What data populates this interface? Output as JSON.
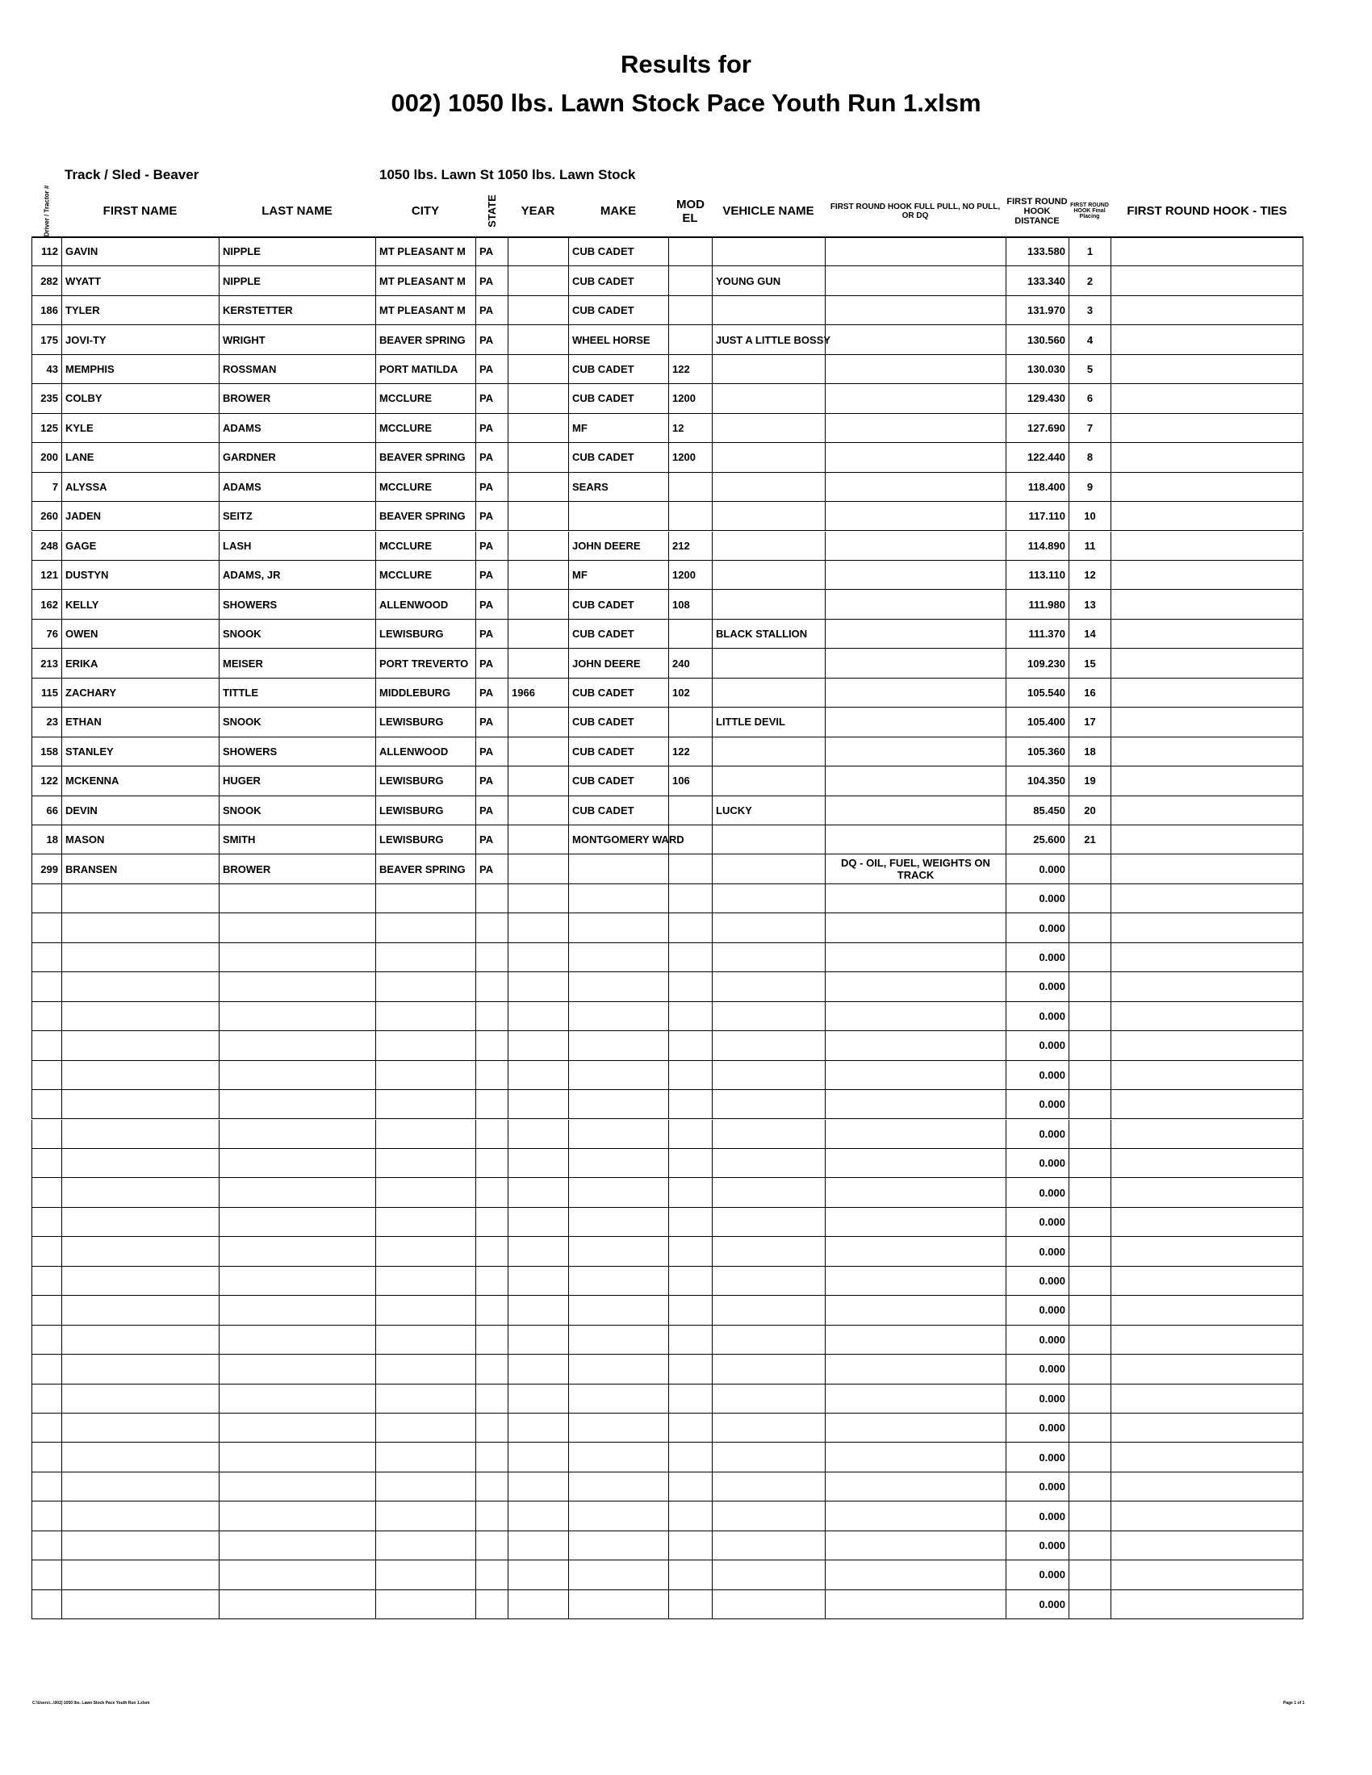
{
  "header": {
    "title": "Results for",
    "subtitle": "002) 1050 lbs. Lawn Stock Pace Youth  Run 1.xlsm",
    "track": "Track / Sled - Beaver",
    "class": "1050 lbs. Lawn St 1050 lbs. Lawn Stock"
  },
  "table": {
    "columns": {
      "num": "Driver / Tractor #",
      "first": "FIRST NAME",
      "last": "LAST NAME",
      "city": "CITY",
      "state": "STATE",
      "year": "YEAR",
      "make": "MAKE",
      "model": "MOD EL",
      "vehicle": "VEHICLE NAME",
      "hook": "FIRST ROUND HOOK FULL PULL, NO PULL, OR DQ",
      "distance": "FIRST ROUND HOOK DISTANCE",
      "place": "FIRST ROUND HOOK Final Placing",
      "ties": "FIRST ROUND HOOK - TIES"
    },
    "rows": [
      {
        "num": "112",
        "first": "GAVIN",
        "last": "NIPPLE",
        "city": "MT PLEASANT M",
        "state": "PA",
        "make": "CUB CADET",
        "distance": "133.580",
        "place": "1"
      },
      {
        "num": "282",
        "first": "WYATT",
        "last": "NIPPLE",
        "city": "MT PLEASANT M",
        "state": "PA",
        "make": "CUB CADET",
        "vehicle": "YOUNG GUN",
        "distance": "133.340",
        "place": "2"
      },
      {
        "num": "186",
        "first": "TYLER",
        "last": "KERSTETTER",
        "city": "MT PLEASANT M",
        "state": "PA",
        "make": "CUB CADET",
        "distance": "131.970",
        "place": "3"
      },
      {
        "num": "175",
        "first": "JOVI-TY",
        "last": "WRIGHT",
        "city": "BEAVER SPRING",
        "state": "PA",
        "make": "WHEEL HORSE",
        "vehicle": "JUST A LITTLE BOSSY",
        "distance": "130.560",
        "place": "4"
      },
      {
        "num": "43",
        "first": "MEMPHIS",
        "last": "ROSSMAN",
        "city": "PORT MATILDA",
        "state": "PA",
        "make": "CUB CADET",
        "model": "122",
        "distance": "130.030",
        "place": "5"
      },
      {
        "num": "235",
        "first": "COLBY",
        "last": "BROWER",
        "city": "MCCLURE",
        "state": "PA",
        "make": "CUB CADET",
        "model": "1200",
        "distance": "129.430",
        "place": "6"
      },
      {
        "num": "125",
        "first": "KYLE",
        "last": "ADAMS",
        "city": "MCCLURE",
        "state": "PA",
        "make": "MF",
        "model": "12",
        "distance": "127.690",
        "place": "7"
      },
      {
        "num": "200",
        "first": "LANE",
        "last": "GARDNER",
        "city": "BEAVER SPRING",
        "state": "PA",
        "make": "CUB CADET",
        "model": "1200",
        "distance": "122.440",
        "place": "8"
      },
      {
        "num": "7",
        "first": "ALYSSA",
        "last": "ADAMS",
        "city": "MCCLURE",
        "state": "PA",
        "make": "SEARS",
        "distance": "118.400",
        "place": "9"
      },
      {
        "num": "260",
        "first": "JADEN",
        "last": "SEITZ",
        "city": "BEAVER SPRING",
        "state": "PA",
        "distance": "117.110",
        "place": "10"
      },
      {
        "num": "248",
        "first": "GAGE",
        "last": "LASH",
        "city": "MCCLURE",
        "state": "PA",
        "make": "JOHN DEERE",
        "model": "212",
        "distance": "114.890",
        "place": "11"
      },
      {
        "num": "121",
        "first": "DUSTYN",
        "last": "ADAMS, JR",
        "city": "MCCLURE",
        "state": "PA",
        "make": "MF",
        "model": "1200",
        "distance": "113.110",
        "place": "12"
      },
      {
        "num": "162",
        "first": "KELLY",
        "last": "SHOWERS",
        "city": "ALLENWOOD",
        "state": "PA",
        "make": "CUB CADET",
        "model": "108",
        "distance": "111.980",
        "place": "13"
      },
      {
        "num": "76",
        "first": "OWEN",
        "last": "SNOOK",
        "city": "LEWISBURG",
        "state": "PA",
        "make": "CUB CADET",
        "vehicle": "BLACK STALLION",
        "distance": "111.370",
        "place": "14"
      },
      {
        "num": "213",
        "first": "ERIKA",
        "last": "MEISER",
        "city": "PORT TREVERTO",
        "state": "PA",
        "make": "JOHN DEERE",
        "model": "240",
        "distance": "109.230",
        "place": "15"
      },
      {
        "num": "115",
        "first": "ZACHARY",
        "last": "TITTLE",
        "city": "MIDDLEBURG",
        "state": "PA",
        "year": "1966",
        "make": "CUB CADET",
        "model": "102",
        "distance": "105.540",
        "place": "16"
      },
      {
        "num": "23",
        "first": "ETHAN",
        "last": "SNOOK",
        "city": "LEWISBURG",
        "state": "PA",
        "make": "CUB CADET",
        "vehicle": "LITTLE DEVIL",
        "distance": "105.400",
        "place": "17"
      },
      {
        "num": "158",
        "first": "STANLEY",
        "last": "SHOWERS",
        "city": "ALLENWOOD",
        "state": "PA",
        "make": "CUB CADET",
        "model": "122",
        "distance": "105.360",
        "place": "18"
      },
      {
        "num": "122",
        "first": "MCKENNA",
        "last": "HUGER",
        "city": "LEWISBURG",
        "state": "PA",
        "make": "CUB CADET",
        "model": "106",
        "distance": "104.350",
        "place": "19"
      },
      {
        "num": "66",
        "first": "DEVIN",
        "last": "SNOOK",
        "city": "LEWISBURG",
        "state": "PA",
        "make": "CUB CADET",
        "vehicle": "LUCKY",
        "distance": "85.450",
        "place": "20"
      },
      {
        "num": "18",
        "first": "MASON",
        "last": "SMITH",
        "city": "LEWISBURG",
        "state": "PA",
        "make": "MONTGOMERY WARD",
        "distance": "25.600",
        "place": "21"
      },
      {
        "num": "299",
        "first": "BRANSEN",
        "last": "BROWER",
        "city": "BEAVER SPRING",
        "state": "PA",
        "hook": "DQ - OIL, FUEL, WEIGHTS ON TRACK",
        "distance": "0.000"
      },
      {
        "distance": "0.000"
      },
      {
        "distance": "0.000"
      },
      {
        "distance": "0.000"
      },
      {
        "distance": "0.000"
      },
      {
        "distance": "0.000"
      },
      {
        "distance": "0.000"
      },
      {
        "distance": "0.000"
      },
      {
        "distance": "0.000"
      },
      {
        "distance": "0.000"
      },
      {
        "distance": "0.000"
      },
      {
        "distance": "0.000"
      },
      {
        "distance": "0.000"
      },
      {
        "distance": "0.000"
      },
      {
        "distance": "0.000"
      },
      {
        "distance": "0.000"
      },
      {
        "distance": "0.000"
      },
      {
        "distance": "0.000"
      },
      {
        "distance": "0.000"
      },
      {
        "distance": "0.000"
      },
      {
        "distance": "0.000"
      },
      {
        "distance": "0.000"
      },
      {
        "distance": "0.000"
      },
      {
        "distance": "0.000"
      },
      {
        "distance": "0.000"
      },
      {
        "distance": "0.000"
      }
    ]
  },
  "footer": {
    "path": "C:\\Users\\...\\002) 1050 lbs. Lawn Stock Pace Youth  Run 1.xlsm",
    "page": "Page 1 of 1"
  }
}
